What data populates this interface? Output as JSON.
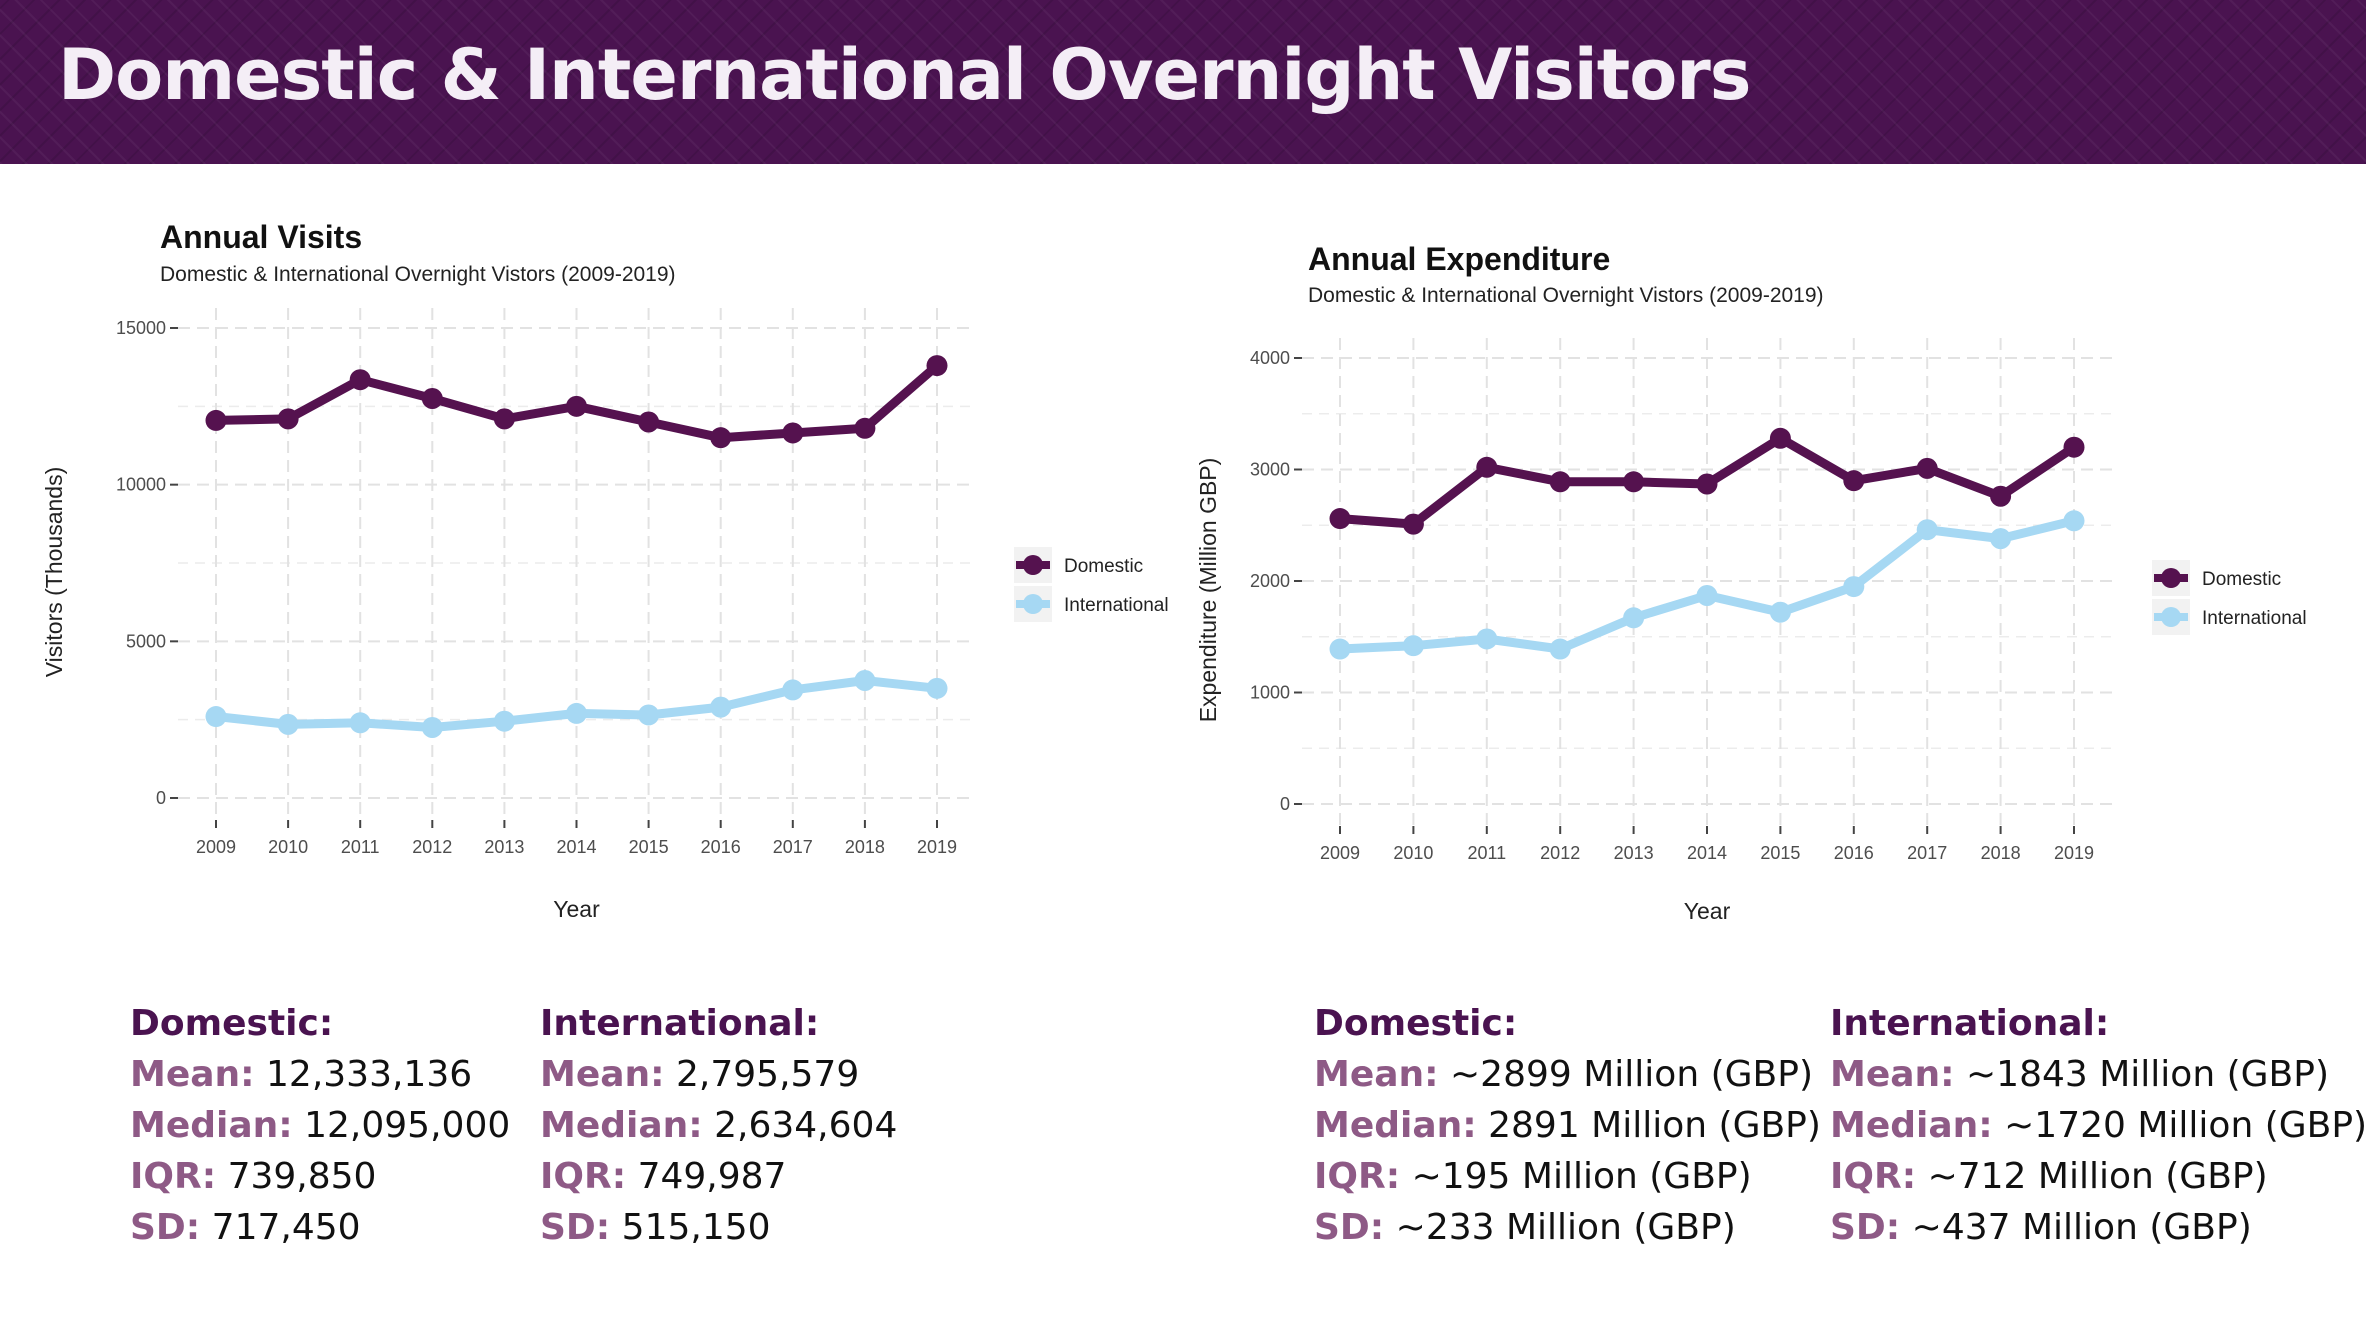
{
  "banner": {
    "title": "Domestic & International Overnight Visitors"
  },
  "colors": {
    "banner_bg": "#4a1350",
    "domestic": "#55124f",
    "international": "#a6d8f3",
    "stat_heading": "#4a1350",
    "stat_label": "#8e5a86"
  },
  "chart_data": [
    {
      "type": "line",
      "title": "Annual Visits",
      "subtitle": "Domestic & International Overnight Vistors (2009-2019)",
      "xlabel": "Year",
      "ylabel": "Visitors (Thousands)",
      "x": [
        "2009",
        "2010",
        "2011",
        "2012",
        "2013",
        "2014",
        "2015",
        "2016",
        "2017",
        "2018",
        "2019"
      ],
      "ylim": [
        0,
        15000
      ],
      "yticks": [
        0,
        5000,
        10000,
        15000
      ],
      "grid": true,
      "legend_position": "right",
      "series": [
        {
          "name": "Domestic",
          "color": "#55124f",
          "values": [
            12050,
            12100,
            13350,
            12750,
            12100,
            12500,
            12000,
            11500,
            11650,
            11800,
            13800
          ]
        },
        {
          "name": "International",
          "color": "#a6d8f3",
          "values": [
            2600,
            2350,
            2400,
            2250,
            2450,
            2700,
            2650,
            2900,
            3450,
            3750,
            3500
          ]
        }
      ]
    },
    {
      "type": "line",
      "title": "Annual Expenditure",
      "subtitle": "Domestic & International Overnight Vistors (2009-2019)",
      "xlabel": "Year",
      "ylabel": "Expenditure (Million GBP)",
      "x": [
        "2009",
        "2010",
        "2011",
        "2012",
        "2013",
        "2014",
        "2015",
        "2016",
        "2017",
        "2018",
        "2019"
      ],
      "ylim": [
        0,
        4000
      ],
      "yticks": [
        0,
        1000,
        2000,
        3000,
        4000
      ],
      "grid": true,
      "legend_position": "right",
      "series": [
        {
          "name": "Domestic",
          "color": "#55124f",
          "values": [
            2560,
            2510,
            3020,
            2890,
            2890,
            2870,
            3280,
            2900,
            3010,
            2760,
            3200
          ]
        },
        {
          "name": "International",
          "color": "#a6d8f3",
          "values": [
            1390,
            1420,
            1480,
            1390,
            1670,
            1870,
            1720,
            1950,
            2460,
            2380,
            2540
          ]
        }
      ]
    }
  ],
  "stats": {
    "visits_domestic": {
      "heading": "Domestic:",
      "mean_label": "Mean:",
      "mean": "12,333,136",
      "median_label": "Median:",
      "median": "12,095,000",
      "iqr_label": "IQR:",
      "iqr": "739,850",
      "sd_label": "SD:",
      "sd": "717,450"
    },
    "visits_international": {
      "heading": "International:",
      "mean_label": "Mean:",
      "mean": "2,795,579",
      "median_label": "Median:",
      "median": "2,634,604",
      "iqr_label": "IQR:",
      "iqr": "749,987",
      "sd_label": "SD:",
      "sd": "515,150"
    },
    "exp_domestic": {
      "heading": "Domestic:",
      "mean_label": "Mean:",
      "mean": "~2899 Million (GBP)",
      "median_label": "Median:",
      "median": "2891 Million (GBP)",
      "iqr_label": "IQR:",
      "iqr": "~195 Million (GBP)",
      "sd_label": "SD:",
      "sd": "~233 Million (GBP)"
    },
    "exp_international": {
      "heading": "International:",
      "mean_label": "Mean:",
      "mean": "~1843 Million (GBP)",
      "median_label": "Median:",
      "median": "~1720 Million (GBP)",
      "iqr_label": "IQR:",
      "iqr": "~712 Million (GBP)",
      "sd_label": "SD:",
      "sd": "~437 Million (GBP)"
    }
  }
}
